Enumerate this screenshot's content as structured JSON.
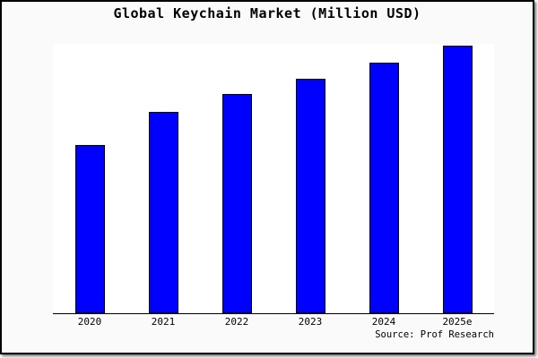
{
  "figure": {
    "title": "Global Keychain Market (Million USD)",
    "source_credit": "Source: Prof Research"
  },
  "colors": {
    "bar_fill": "#0000ff",
    "bar_border": "#000000",
    "figure_background": "#fafafa",
    "plot_background": "#ffffff",
    "frame_border": "#000000",
    "axis_line": "#000000",
    "text": "#000000"
  },
  "chart_data": {
    "type": "bar",
    "title": "Global Keychain Market (Million USD)",
    "categories": [
      "2020",
      "2021",
      "2022",
      "2023",
      "2024",
      "2025e"
    ],
    "values": [
      188,
      225,
      245,
      262,
      280,
      299
    ],
    "values_unit": "relative bar height in px (y-axis is unlabeled in the figure)",
    "xlabel": "",
    "ylabel": "",
    "ylim": [
      0,
      301
    ],
    "y_axis_labeled": false,
    "grid": false,
    "legend": false,
    "annotations": [
      "Source: Prof Research"
    ]
  }
}
